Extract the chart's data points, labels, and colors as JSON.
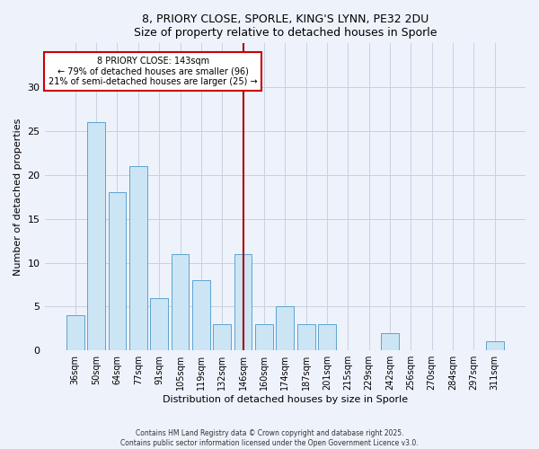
{
  "title_line1": "8, PRIORY CLOSE, SPORLE, KING'S LYNN, PE32 2DU",
  "title_line2": "Size of property relative to detached houses in Sporle",
  "xlabel": "Distribution of detached houses by size in Sporle",
  "ylabel": "Number of detached properties",
  "bar_labels": [
    "36sqm",
    "50sqm",
    "64sqm",
    "77sqm",
    "91sqm",
    "105sqm",
    "119sqm",
    "132sqm",
    "146sqm",
    "160sqm",
    "174sqm",
    "187sqm",
    "201sqm",
    "215sqm",
    "229sqm",
    "242sqm",
    "256sqm",
    "270sqm",
    "284sqm",
    "297sqm",
    "311sqm"
  ],
  "bar_values": [
    4,
    26,
    18,
    21,
    6,
    11,
    8,
    3,
    11,
    3,
    5,
    3,
    3,
    0,
    0,
    2,
    0,
    0,
    0,
    0,
    1
  ],
  "bar_color": "#cce5f5",
  "bar_edge_color": "#5ba3d0",
  "vline_x_index": 8,
  "vline_color": "#aa0000",
  "annotation_title": "8 PRIORY CLOSE: 143sqm",
  "annotation_line2": "← 79% of detached houses are smaller (96)",
  "annotation_line3": "21% of semi-detached houses are larger (25) →",
  "annotation_box_color": "#cc0000",
  "annotation_bg": "#ffffff",
  "ylim": [
    0,
    35
  ],
  "yticks": [
    0,
    5,
    10,
    15,
    20,
    25,
    30
  ],
  "footer_line1": "Contains HM Land Registry data © Crown copyright and database right 2025.",
  "footer_line2": "Contains public sector information licensed under the Open Government Licence v3.0.",
  "bg_color": "#eef2fb",
  "plot_bg_color": "#eef2fb",
  "grid_color": "#c8d0e0"
}
